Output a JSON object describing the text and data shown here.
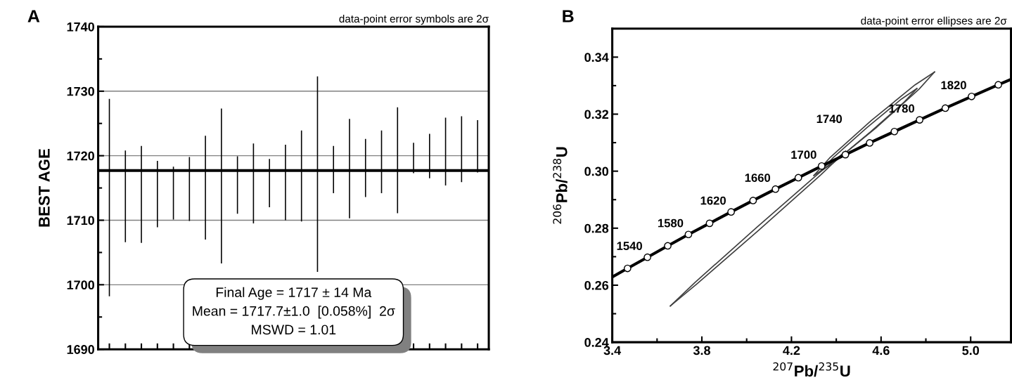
{
  "chart_data": [
    {
      "type": "bar",
      "ylabel": "BEST AGE",
      "tick_labels": "y",
      "grid": "y",
      "color": "#000000",
      "categories": [
        null,
        null,
        null,
        null,
        null,
        null,
        null,
        null,
        null,
        null,
        null,
        null,
        null,
        null,
        null,
        null,
        null,
        null,
        null,
        null,
        null,
        null,
        null,
        null
      ],
      "base": [
        1698.2,
        1706.6,
        1706.5,
        1708.9,
        1710.1,
        1709.9,
        1707.0,
        1703.3,
        1711.0,
        1709.5,
        1712.0,
        1710.0,
        1709.8,
        1702.0,
        1714.2,
        1710.3,
        1713.6,
        1714.2,
        1711.1,
        1717.3,
        1716.5,
        1715.4,
        1715.9,
        1717.4
      ],
      "values": [
        30.6,
        14.2,
        15.0,
        10.3,
        8.2,
        9.9,
        16.1,
        24.0,
        8.9,
        12.4,
        7.5,
        11.7,
        14.1,
        30.3,
        7.3,
        15.4,
        9.0,
        9.7,
        16.4,
        4.7,
        6.9,
        10.5,
        10.2,
        8.1
      ],
      "ylim": [
        1690,
        1740
      ],
      "yticks": [
        1690,
        {
          "value": 1695,
          "label": null
        },
        1700,
        {
          "value": 1705,
          "label": null
        },
        1710,
        {
          "value": 1715,
          "label": null
        },
        1720,
        {
          "value": 1725,
          "label": null
        },
        1730,
        {
          "value": 1735,
          "label": null
        },
        1740
      ],
      "ref_lines": [
        {
          "axis": "y",
          "value": 1717.7,
          "label": null,
          "color": "#000000"
        }
      ],
      "annotations": [
        "A",
        "data-point error symbols are 2σ",
        "Final Age = 1717 ± 14 Ma\nMean = 1717.7±1.0  [0.058%]  2σ\nMSWD = 1.01"
      ]
    },
    {
      "type": "line",
      "xlabel": "$^{207}$Pb/$^{235}$U",
      "ylabel": "$^{206}$Pb/$^{238}$U",
      "grid": false,
      "xlim": [
        3.4,
        5.18
      ],
      "ylim": [
        0.24,
        0.35
      ],
      "xticks": [
        3.4,
        {
          "value": 3.6,
          "label": null
        },
        3.8,
        {
          "value": 4.0,
          "label": null
        },
        4.2,
        {
          "value": 4.4,
          "label": null
        },
        4.6,
        {
          "value": 4.8,
          "label": null
        },
        {
          "value": 5.0,
          "label": "5.0"
        }
      ],
      "yticks": [
        0.24,
        {
          "value": 0.25,
          "label": null
        },
        0.26,
        {
          "value": 0.27,
          "label": null
        },
        0.28,
        {
          "value": 0.29,
          "label": null
        },
        {
          "value": 0.3,
          "label": "0.30"
        },
        {
          "value": 0.31,
          "label": null
        },
        0.32,
        {
          "value": 0.33,
          "label": null
        },
        0.34
      ],
      "series": [
        {
          "type": "line",
          "color": "#000000",
          "marker": "none",
          "x": [
            3.4,
            3.4681,
            3.557,
            3.6477,
            3.7401,
            3.8344,
            3.9306,
            4.0287,
            4.1287,
            4.2307,
            4.3347,
            4.4409,
            4.5491,
            4.6595,
            4.7721,
            4.8869,
            5.004,
            5.1234,
            5.18
          ],
          "values": [
            0.2629,
            0.2659,
            0.2698,
            0.2738,
            0.2778,
            0.2817,
            0.2857,
            0.2897,
            0.2937,
            0.2977,
            0.3018,
            0.3058,
            0.3099,
            0.3139,
            0.318,
            0.3221,
            0.3262,
            0.3303,
            0.3322
          ]
        },
        {
          "type": "line",
          "color": "#404040",
          "marker": "none",
          "x": [
            3.659,
            3.77,
            4.045,
            4.324,
            4.442
          ],
          "values": [
            0.2527,
            0.261,
            0.2803,
            0.2994,
            0.307
          ]
        },
        {
          "type": "line",
          "color": "#404040",
          "marker": "none",
          "x": [
            3.659,
            3.777,
            4.056,
            4.331,
            4.442
          ],
          "values": [
            0.2527,
            0.2604,
            0.2794,
            0.2987,
            0.307
          ]
        },
        {
          "type": "line",
          "color": "#404040",
          "marker": "none",
          "x": [
            4.3,
            4.37,
            4.557,
            4.752,
            4.839
          ],
          "values": [
            0.2985,
            0.3046,
            0.3178,
            0.3303,
            0.3348
          ]
        },
        {
          "type": "line",
          "color": "#404040",
          "marker": "none",
          "x": [
            4.3,
            4.388,
            4.582,
            4.769,
            4.839
          ],
          "values": [
            0.2985,
            0.303,
            0.3155,
            0.3287,
            0.3348
          ]
        },
        {
          "type": "line",
          "color": "#404040",
          "marker": "none",
          "x": [
            4.33,
            4.387,
            4.537,
            4.691,
            4.76
          ],
          "values": [
            0.3,
            0.3048,
            0.3153,
            0.3253,
            0.329
          ]
        },
        {
          "type": "line",
          "color": "#404040",
          "marker": "none",
          "x": [
            4.33,
            4.399,
            4.553,
            4.703,
            4.76
          ],
          "values": [
            0.3,
            0.3037,
            0.3138,
            0.3242,
            0.329
          ]
        },
        {
          "type": "scatter",
          "color": "#ffffff",
          "marker": "circle",
          "x": [
            3.4681,
            3.557,
            3.6477,
            3.7401,
            3.8344,
            3.9306,
            4.0287,
            4.1287,
            4.2307,
            4.3347,
            4.4409,
            4.5491,
            4.6595,
            4.7721,
            4.8869,
            5.004,
            5.1234
          ],
          "values": [
            0.2659,
            0.2698,
            0.2738,
            0.2778,
            0.2817,
            0.2857,
            0.2897,
            0.2937,
            0.2977,
            0.3018,
            0.3058,
            0.3099,
            0.3139,
            0.318,
            0.3221,
            0.3262,
            0.3303
          ]
        }
      ],
      "annotations": [
        "B",
        "data-point error ellipses are 2σ",
        {
          "text": "1540",
          "x": 3.557,
          "y": 0.2698
        },
        {
          "text": "1580",
          "x": 3.7401,
          "y": 0.2778
        },
        {
          "text": "1620",
          "x": 3.9306,
          "y": 0.2857
        },
        {
          "text": "1660",
          "x": 4.1287,
          "y": 0.2937
        },
        {
          "text": "1700",
          "x": 4.3347,
          "y": 0.3018
        },
        {
          "text": "1740",
          "x": 4.5491,
          "y": 0.3099
        },
        {
          "text": "1780",
          "x": 4.7721,
          "y": 0.318
        },
        {
          "text": "1820",
          "x": 5.004,
          "y": 0.3262
        }
      ]
    }
  ]
}
